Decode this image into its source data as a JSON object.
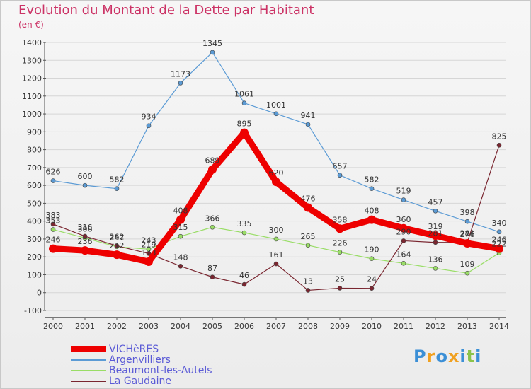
{
  "header": {
    "title": "Evolution du Montant de la Dette par Habitant",
    "unit": "(en €)"
  },
  "logo": {
    "text": "Proxiti",
    "colors": [
      "#3b8fd6",
      "#f0a020",
      "#3b8fd6",
      "#f0a020",
      "#3b8fd6",
      "#8bc34a",
      "#3b8fd6"
    ]
  },
  "chart_data": {
    "type": "line",
    "title": "Evolution du Montant de la Dette par Habitant",
    "ylabel": "(en €)",
    "xlabel": "",
    "ylim": [
      -100,
      1400
    ],
    "yticks": [
      -100,
      0,
      100,
      200,
      300,
      400,
      500,
      600,
      700,
      800,
      900,
      1000,
      1100,
      1200,
      1300,
      1400
    ],
    "x": [
      "2000",
      "2001",
      "2002",
      "2003",
      "2004",
      "2005",
      "2006",
      "2007",
      "2008",
      "2009",
      "2010",
      "2011",
      "2012",
      "2013",
      "2014"
    ],
    "grid": "horizontal",
    "legend_position": "bottom-left",
    "series": [
      {
        "name": "VICHèRES",
        "color": "#ee0000",
        "width": 9,
        "values": [
          246,
          236,
          212,
          173,
          408,
          689,
          895,
          620,
          476,
          358,
          408,
          360,
          319,
          276,
          246
        ],
        "labels": [
          "246",
          "236",
          "212",
          "173",
          "408",
          "689",
          "895",
          "620",
          "476",
          "358",
          "408",
          "360",
          "319",
          "276",
          "246"
        ]
      },
      {
        "name": "Argenvilliers",
        "color": "#5b9bd5",
        "width": 1.2,
        "values": [
          626,
          600,
          582,
          934,
          1173,
          1345,
          1061,
          1001,
          941,
          657,
          582,
          519,
          457,
          398,
          340
        ],
        "labels": [
          "626",
          "600",
          "582",
          "934",
          "1173",
          "1345",
          "1061",
          "1001",
          "941",
          "657",
          "582",
          "519",
          "457",
          "398",
          "340"
        ]
      },
      {
        "name": "Beaumont-les-Autels",
        "color": "#99dd66",
        "width": 1.2,
        "values": [
          353,
          306,
          257,
          243,
          315,
          366,
          335,
          300,
          265,
          226,
          190,
          164,
          136,
          109,
          222
        ],
        "labels": [
          "353",
          "306",
          "257",
          "243",
          "315",
          "366",
          "335",
          "300",
          "265",
          "226",
          "190",
          "164",
          "136",
          "109",
          "222"
        ]
      },
      {
        "name": "La Gaudaine",
        "color": "#7a2630",
        "width": 1.2,
        "values": [
          383,
          316,
          262,
          219,
          148,
          87,
          46,
          161,
          13,
          25,
          24,
          290,
          281,
          281,
          825
        ],
        "labels": [
          "383",
          "316",
          "262",
          "219",
          "148",
          "87",
          "46",
          "161",
          "13",
          "25",
          "24",
          "290",
          "281",
          "281",
          "825"
        ]
      }
    ]
  }
}
